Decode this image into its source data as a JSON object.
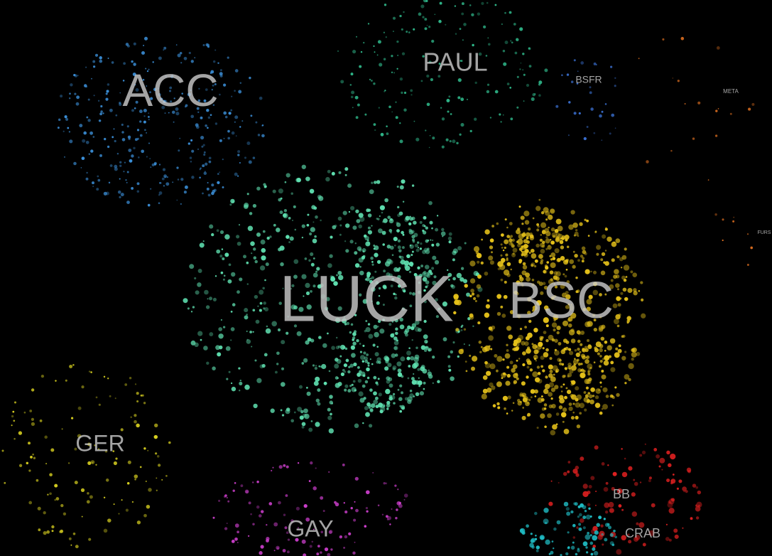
{
  "background": "#000000",
  "clusters": [
    {
      "id": "luck",
      "label": "LUCK",
      "color": "#5fe0b0"
    },
    {
      "id": "bsc",
      "label": "BSC",
      "color": "#e6c21a"
    },
    {
      "id": "acc",
      "label": "ACC",
      "color": "#3b8fd8"
    },
    {
      "id": "paul",
      "label": "PAUL",
      "color": "#2fb88a"
    },
    {
      "id": "ger",
      "label": "GER",
      "color": "#d8d020"
    },
    {
      "id": "gay",
      "label": "GAY",
      "color": "#d040d0"
    },
    {
      "id": "bsfr",
      "label": "BSFR",
      "color": "#3a6fd0"
    },
    {
      "id": "meta",
      "label": "META",
      "color": "#e07020"
    },
    {
      "id": "furs",
      "label": "FURS",
      "color": "#e07020"
    },
    {
      "id": "bb",
      "label": "BB",
      "color": "#e02020"
    },
    {
      "id": "crab",
      "label": "CRAB",
      "color": "#20c0c8"
    }
  ]
}
